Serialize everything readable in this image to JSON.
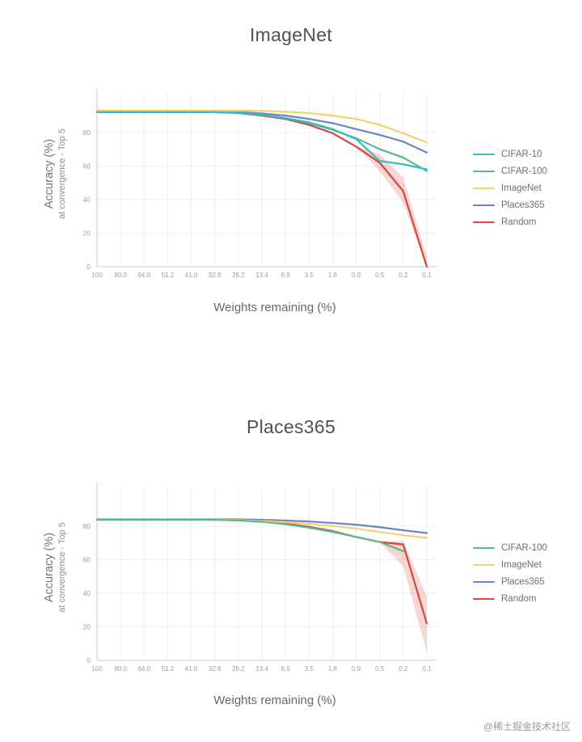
{
  "watermark": "@稀土掘金技术社区",
  "chart_data": [
    {
      "type": "line",
      "title": "ImageNet",
      "xlabel": "Weights remaining (%)",
      "ylabel_line1": "Accuracy (%)",
      "ylabel_line2": "at convergence - Top 5",
      "grid": true,
      "legend_position": "right",
      "x_ticks": [
        "100",
        "80.0",
        "64.0",
        "51.2",
        "41.0",
        "32.8",
        "26.2",
        "13.4",
        "6.9",
        "3.5",
        "1.8",
        "0.9",
        "0.5",
        "0.2",
        "0.1"
      ],
      "y_ticks": [
        0,
        20,
        40,
        60,
        80
      ],
      "ylim": [
        0,
        103
      ],
      "series": [
        {
          "name": "CIFAR-10",
          "color": "#35bfc4",
          "values": [
            92,
            92,
            92,
            92,
            92,
            92,
            91.7,
            90.5,
            88.5,
            86,
            82,
            76,
            63,
            61,
            58
          ]
        },
        {
          "name": "CIFAR-100",
          "color": "#57b98c",
          "values": [
            92,
            92,
            92,
            92,
            92,
            92,
            91.7,
            90.5,
            88.5,
            85.5,
            81.5,
            76.5,
            70,
            65,
            57
          ]
        },
        {
          "name": "ImageNet",
          "color": "#f3d170",
          "values": [
            93,
            93,
            93,
            93,
            93,
            93,
            93,
            92.8,
            92.3,
            91.5,
            90,
            88,
            84.5,
            79.5,
            74
          ]
        },
        {
          "name": "Places365",
          "color": "#6e83c6",
          "values": [
            92.5,
            92.5,
            92.5,
            92.5,
            92.5,
            92.5,
            92.2,
            91.3,
            90,
            88,
            85.5,
            82,
            78.5,
            74.5,
            68
          ]
        },
        {
          "name": "Random",
          "color": "#d6473c",
          "values": [
            92,
            92,
            92,
            92,
            92,
            92,
            91.5,
            90,
            88,
            84.5,
            79.5,
            71.5,
            62,
            45,
            0
          ],
          "band": {
            "from": 11,
            "upper": [
              72,
              67,
              53,
              6
            ],
            "lower": [
              72,
              57,
              38,
              0
            ]
          }
        }
      ]
    },
    {
      "type": "line",
      "title": "Places365",
      "xlabel": "Weights remaining (%)",
      "ylabel_line1": "Accuracy (%)",
      "ylabel_line2": "at convergence - Top 5",
      "grid": true,
      "legend_position": "right",
      "x_ticks": [
        "100",
        "80.0",
        "64.0",
        "51.2",
        "41.0",
        "32.8",
        "26.2",
        "13.4",
        "6.9",
        "3.5",
        "1.8",
        "0.9",
        "0.5",
        "0.2",
        "0.1"
      ],
      "y_ticks": [
        0,
        20,
        40,
        60,
        80
      ],
      "ylim": [
        0,
        103
      ],
      "series": [
        {
          "name": "CIFAR-100",
          "color": "#57b98c",
          "values": [
            83.7,
            83.7,
            83.7,
            83.7,
            83.7,
            83.7,
            83.3,
            82.5,
            81,
            79,
            76.5,
            73.5,
            70.5,
            65,
            null
          ]
        },
        {
          "name": "ImageNet",
          "color": "#f3d170",
          "values": [
            83.8,
            83.8,
            83.8,
            83.8,
            83.8,
            83.8,
            83.5,
            83,
            82.3,
            81.3,
            80,
            78.5,
            76.5,
            74.5,
            73
          ]
        },
        {
          "name": "Places365",
          "color": "#6e83c6",
          "values": [
            84,
            84,
            84,
            84,
            84,
            84,
            84,
            83.7,
            83.3,
            82.7,
            81.8,
            80.8,
            79.3,
            77.5,
            75.8
          ]
        },
        {
          "name": "Random",
          "color": "#d6473c",
          "values": [
            83.9,
            83.9,
            83.9,
            83.9,
            83.9,
            83.9,
            83.6,
            83,
            81.5,
            79.5,
            77,
            73.5,
            70.5,
            69,
            22
          ],
          "band": {
            "from": 12,
            "upper": [
              70.5,
              71,
              38
            ],
            "lower": [
              70.5,
              56,
              5
            ]
          }
        }
      ]
    }
  ]
}
